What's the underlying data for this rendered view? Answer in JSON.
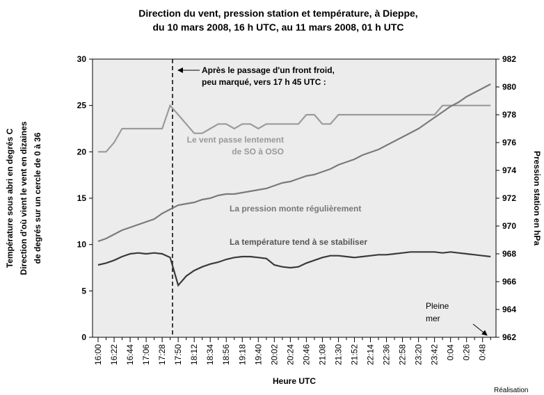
{
  "chart_data": {
    "type": "line",
    "title": [
      "Direction du vent, pression station et température, à Dieppe,",
      "du 10 mars 2008, 16 h UTC, au 11 mars 2008, 01 h UTC"
    ],
    "y_label": [
      "Température sous abri en degrés C",
      "Direction d'où vient le vent en dizaines",
      "de degrés sur un cercle de 0 à 36"
    ],
    "y2_label": "Pression station en hPa",
    "x_label": "Heure UTC",
    "categories": [
      "16:00",
      null,
      "16:22",
      null,
      "16:44",
      null,
      "17:06",
      null,
      "17:28",
      null,
      "17:50",
      null,
      "18:12",
      null,
      "18:34",
      null,
      "18:56",
      null,
      "19:18",
      null,
      "19:40",
      null,
      "20:02",
      null,
      "20:24",
      null,
      "20:46",
      null,
      "21:08",
      null,
      "21:30",
      null,
      "21:52",
      null,
      "22:14",
      null,
      "22:36",
      null,
      "22:58",
      null,
      "23:20",
      null,
      "23:42",
      null,
      "0:04",
      null,
      "0:26",
      null,
      "0:48",
      null
    ],
    "series": [
      {
        "name": "Direction du vent",
        "color": "#9a9a9a",
        "values": [
          20,
          20,
          21,
          22.5,
          22.5,
          22.5,
          22.5,
          22.5,
          22.5,
          25,
          24,
          23,
          22,
          22,
          22.5,
          23,
          23,
          22.5,
          23,
          23,
          22.5,
          23,
          23,
          23,
          23,
          23,
          24,
          24,
          23,
          23,
          24,
          24,
          24,
          24,
          24,
          24,
          24,
          24,
          24,
          24,
          24,
          24,
          24,
          25,
          25,
          25,
          25,
          25,
          25,
          25
        ]
      },
      {
        "name": "Pression",
        "color": "#7a7a7a",
        "axis": "y2",
        "values": [
          968.9,
          969.1,
          969.4,
          969.7,
          969.9,
          970.1,
          970.3,
          970.5,
          970.9,
          971.2,
          971.5,
          971.6,
          971.7,
          971.9,
          972.0,
          972.2,
          972.3,
          972.3,
          972.4,
          972.5,
          972.6,
          972.7,
          972.9,
          973.1,
          973.2,
          973.4,
          973.6,
          973.7,
          973.9,
          974.1,
          974.4,
          974.6,
          974.8,
          975.1,
          975.3,
          975.5,
          975.8,
          976.1,
          976.4,
          976.7,
          977.0,
          977.4,
          977.8,
          978.2,
          978.6,
          978.9,
          979.3,
          979.6,
          979.9,
          980.2
        ]
      },
      {
        "name": "Température",
        "color": "#3a3a3a",
        "values": [
          7.8,
          8.0,
          8.3,
          8.7,
          9.0,
          9.1,
          9.0,
          9.1,
          9.0,
          8.6,
          5.6,
          6.6,
          7.2,
          7.6,
          7.9,
          8.1,
          8.4,
          8.6,
          8.7,
          8.7,
          8.6,
          8.5,
          7.8,
          7.6,
          7.5,
          7.6,
          8.0,
          8.3,
          8.6,
          8.8,
          8.8,
          8.7,
          8.6,
          8.7,
          8.8,
          8.9,
          8.9,
          9.0,
          9.1,
          9.2,
          9.2,
          9.2,
          9.2,
          9.1,
          9.2,
          9.1,
          9.0,
          8.9,
          8.8,
          8.7
        ]
      }
    ],
    "ylim": [
      0,
      30
    ],
    "yticks": [
      0,
      5,
      10,
      15,
      20,
      25,
      30
    ],
    "y2lim": [
      962,
      982
    ],
    "y2ticks": [
      962,
      964,
      966,
      968,
      970,
      972,
      974,
      976,
      978,
      980,
      982
    ],
    "annotations": [
      "Après le passage d'un front froid,",
      "peu marqué, vers 17 h 45 UTC :",
      "Le vent passe lentement",
      "de SO à OSO",
      "La pression monte régulièrement",
      "La température tend à se stabiliser",
      "Pleine",
      "mer",
      "Réalisation"
    ]
  }
}
